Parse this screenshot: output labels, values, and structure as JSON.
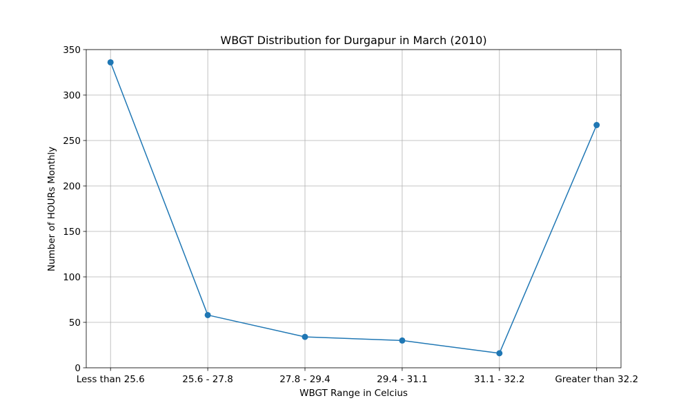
{
  "chart_data": {
    "type": "line",
    "title": "WBGT Distribution for Durgapur in March (2010)",
    "xlabel": "WBGT Range in Celcius",
    "ylabel": "Number of HOURs Monthly",
    "categories": [
      "Less than 25.6",
      "25.6 - 27.8",
      "27.8 - 29.4",
      "29.4 - 31.1",
      "31.1 - 32.2",
      "Greater than 32.2"
    ],
    "series": [
      {
        "values": [
          336,
          58,
          34,
          30,
          16,
          267
        ],
        "color": "#1f77b4",
        "marker": "circle"
      }
    ],
    "ylim": [
      0,
      350
    ],
    "yticks": [
      "0",
      "50",
      "100",
      "150",
      "200",
      "250",
      "300",
      "350"
    ],
    "grid": true,
    "legend": "none"
  }
}
